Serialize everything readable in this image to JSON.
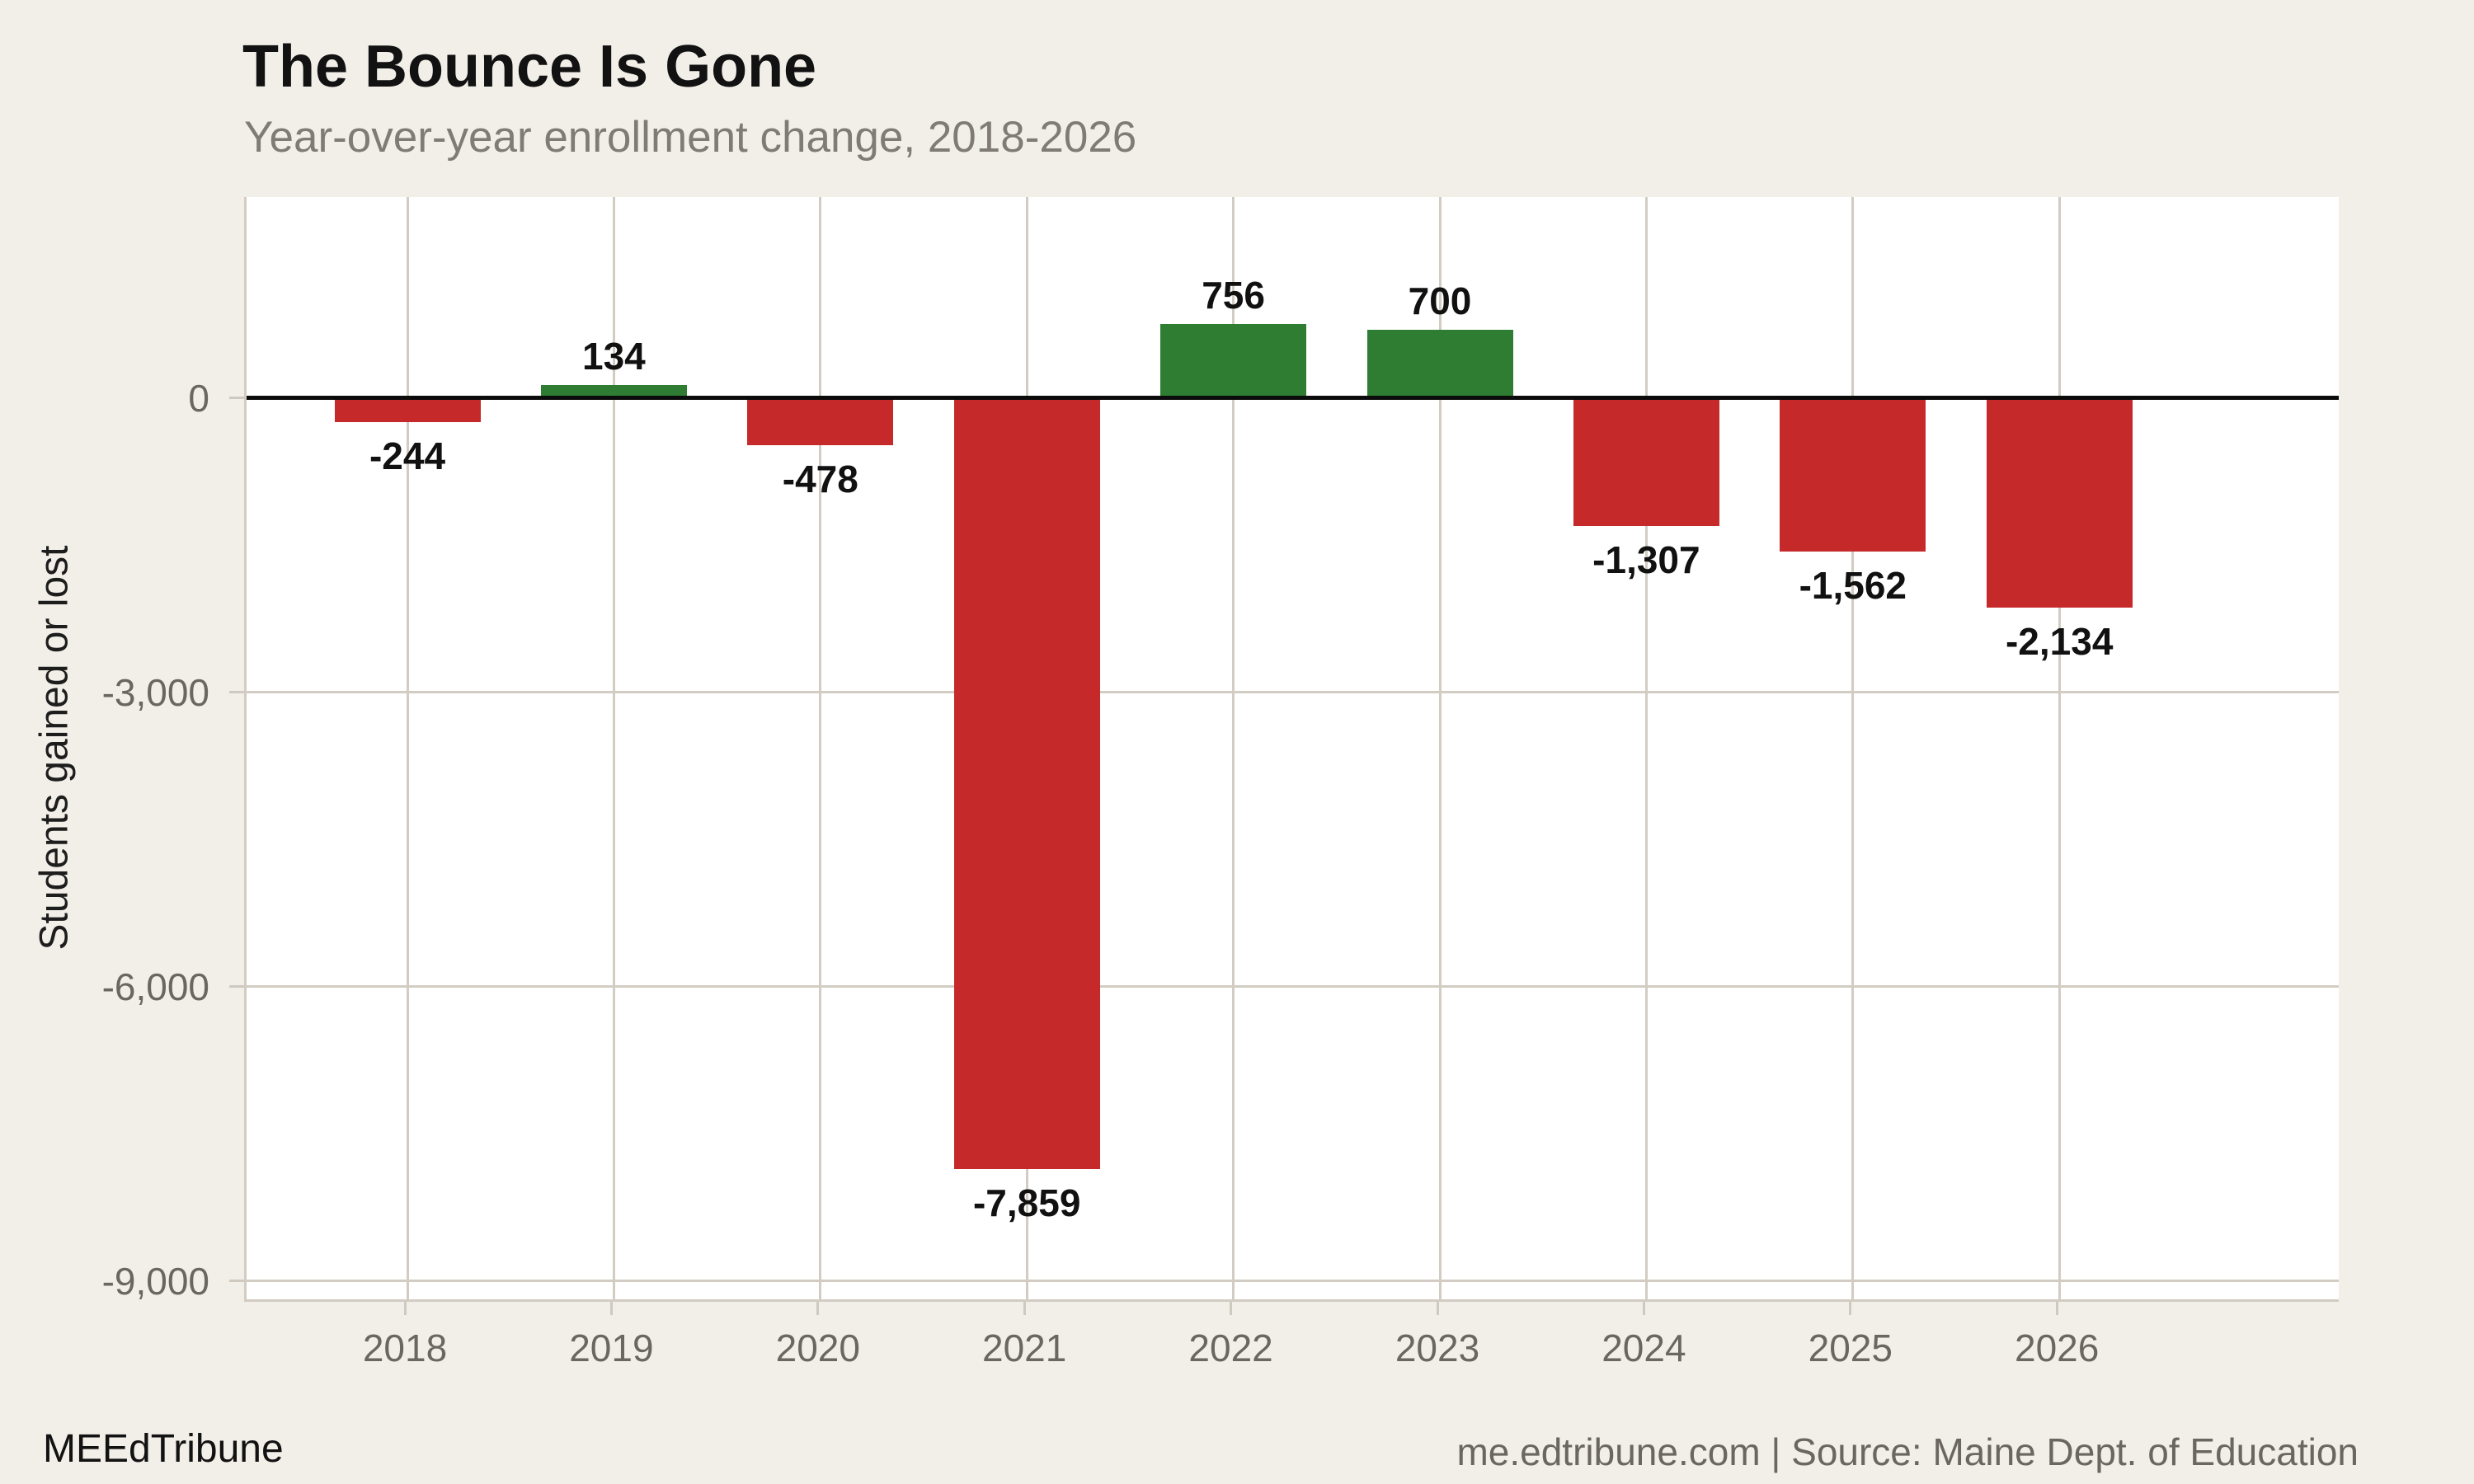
{
  "header": {
    "title": "The Bounce Is Gone",
    "subtitle": "Year-over-year enrollment change, 2018-2026"
  },
  "chart_data": {
    "type": "bar",
    "categories": [
      "2018",
      "2019",
      "2020",
      "2021",
      "2022",
      "2023",
      "2024",
      "2025",
      "2026"
    ],
    "values": [
      -244,
      134,
      -478,
      -7859,
      756,
      700,
      -1307,
      -1562,
      -2134
    ],
    "value_labels": [
      "-244",
      "134",
      "-478",
      "-7,859",
      "756",
      "700",
      "-1,307",
      "-1,562",
      "-2,134"
    ],
    "title": "The Bounce Is Gone",
    "subtitle": "Year-over-year enrollment change, 2018-2026",
    "xlabel": "",
    "ylabel": "Students gained or lost",
    "ylim": [
      -9185,
      2050
    ],
    "y_ticks": [
      {
        "value": 0,
        "label": "0"
      },
      {
        "value": -3000,
        "label": "-3,000"
      },
      {
        "value": -6000,
        "label": "-6,000"
      },
      {
        "value": -9000,
        "label": "-9,000"
      }
    ],
    "grid": true,
    "legend": false,
    "colors": {
      "positive": "#2f7d33",
      "negative": "#c5292a",
      "gridline": "#d2ccc3",
      "zero_line": "#0b0b0b",
      "background": "#f2efe9",
      "plot_background": "#ffffff",
      "tick_label": "#6b675f"
    }
  },
  "footer": {
    "left": "MEEdTribune",
    "right": "me.edtribune.com | Source: Maine Dept. of Education"
  }
}
